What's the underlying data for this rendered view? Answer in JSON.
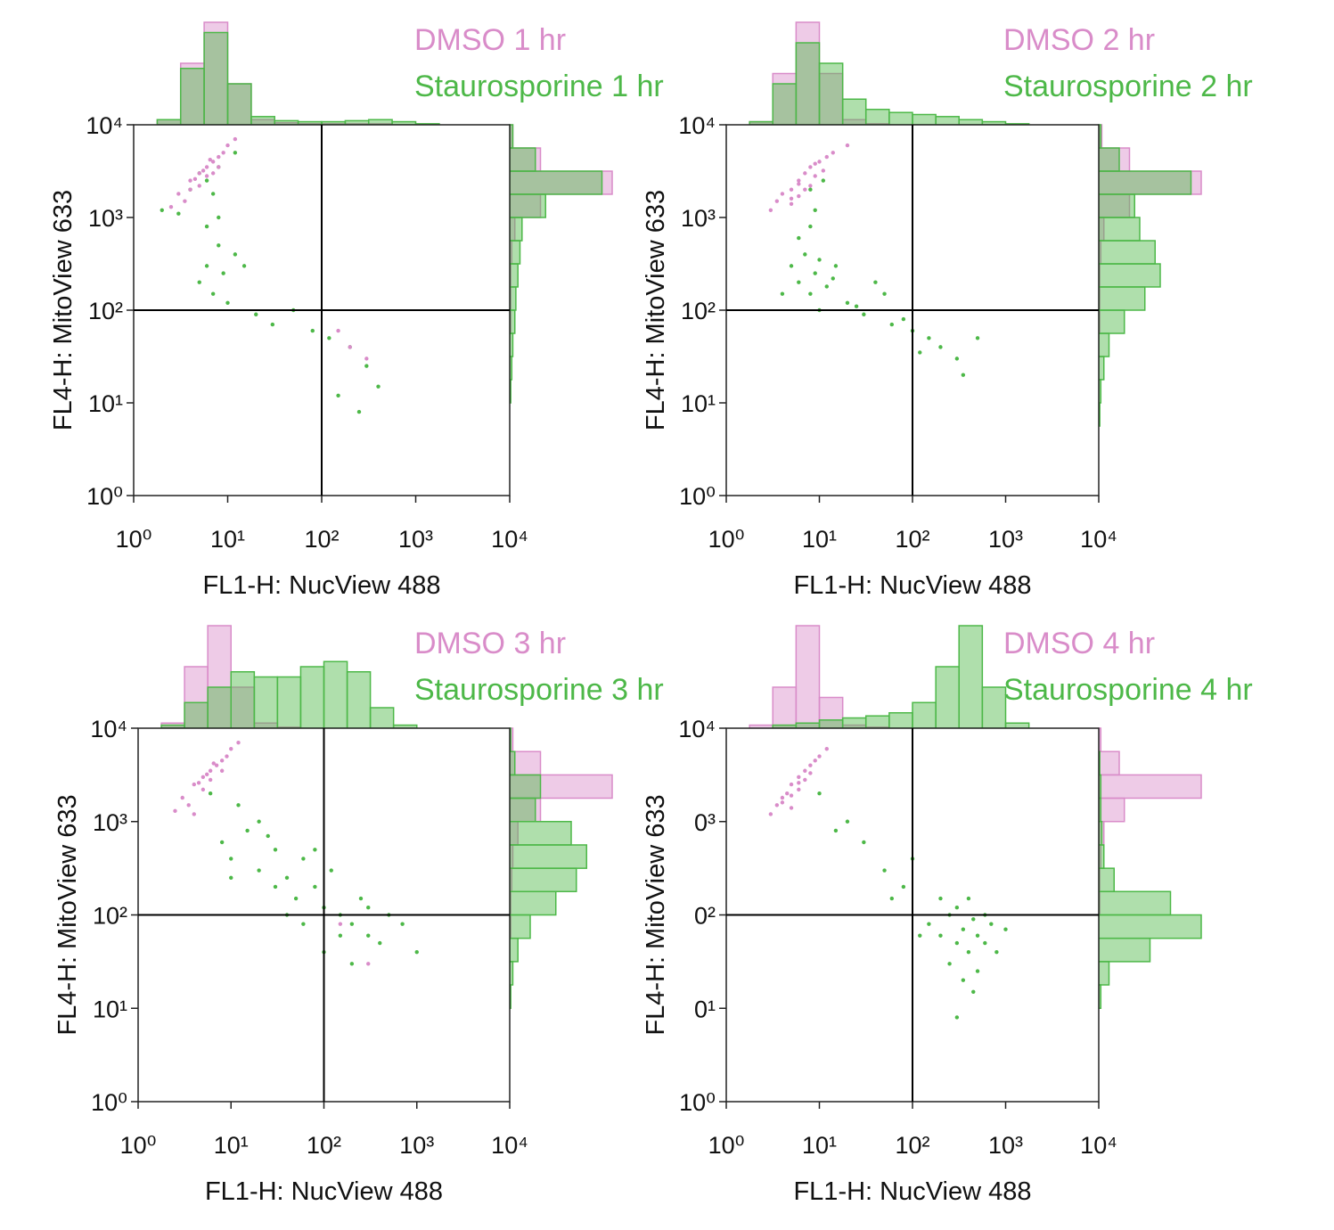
{
  "chart_data": [
    {
      "type": "scatter",
      "xlabel": "FL1-H: NucView 488",
      "ylabel": "FL4-H: MitoView 633",
      "xscale": "log",
      "yscale": "log",
      "xlim": [
        1,
        10000
      ],
      "ylim": [
        1,
        10000
      ],
      "xticks": [
        {
          "value": 1,
          "label": "10⁰"
        },
        {
          "value": 10,
          "label": "10¹"
        },
        {
          "value": 100,
          "label": "10²"
        },
        {
          "value": 1000,
          "label": "10³"
        },
        {
          "value": 10000,
          "label": "10⁴"
        }
      ],
      "yticks": [
        {
          "value": 1,
          "label": "10⁰"
        },
        {
          "value": 10,
          "label": "10¹"
        },
        {
          "value": 100,
          "label": "10²"
        },
        {
          "value": 1000,
          "label": "10³"
        },
        {
          "value": 10000,
          "label": "10⁴"
        }
      ],
      "x_gate": 100,
      "y_gate": 100,
      "hist_bins": [
        1,
        1.78,
        3.16,
        5.62,
        10,
        17.8,
        31.6,
        56.2,
        100,
        178,
        316,
        562,
        1000,
        1780,
        3160,
        5620,
        10000
      ],
      "series": [
        {
          "name": "DMSO 1 hr",
          "color": "#d98cc9",
          "x": [
            2.5,
            3,
            3.5,
            4,
            4,
            4.5,
            5,
            5,
            5.5,
            6,
            6,
            6.5,
            7,
            7,
            8,
            8,
            9,
            10,
            12,
            150,
            200,
            300
          ],
          "y": [
            1300,
            1800,
            1500,
            2500,
            2000,
            2600,
            3000,
            2200,
            3200,
            3500,
            2800,
            4200,
            4000,
            3000,
            4500,
            3500,
            5000,
            6000,
            7000,
            60,
            40,
            30
          ],
          "x_hist": [
            0,
            5,
            60,
            100,
            40,
            5,
            2,
            1,
            1,
            1,
            1,
            0,
            0,
            0,
            0,
            0
          ],
          "y_hist": [
            0,
            0,
            0,
            0,
            0,
            0,
            0,
            1,
            1,
            1,
            2,
            5,
            30,
            100,
            30,
            3
          ]
        },
        {
          "name": "Staurosporine 1 hr",
          "color": "#4db848",
          "x": [
            2,
            3,
            5,
            6,
            7,
            8,
            9,
            10,
            12,
            6,
            8,
            20,
            30,
            50,
            120,
            200,
            300,
            400,
            250,
            150,
            6,
            8,
            5,
            12,
            7,
            4,
            15,
            80
          ],
          "y": [
            1200,
            1100,
            200,
            300,
            150,
            500,
            250,
            120,
            400,
            800,
            1000,
            90,
            70,
            100,
            50,
            40,
            25,
            15,
            8,
            12,
            2500,
            3500,
            3000,
            5000,
            1800,
            2000,
            300,
            60
          ],
          "x_hist": [
            0,
            5,
            55,
            90,
            40,
            8,
            4,
            3,
            3,
            4,
            5,
            3,
            1,
            0,
            0,
            0
          ],
          "y_hist": [
            0,
            0,
            0,
            0,
            1,
            2,
            3,
            5,
            6,
            8,
            10,
            12,
            35,
            90,
            25,
            3
          ]
        }
      ]
    },
    {
      "type": "scatter",
      "xlabel": "FL1-H: NucView 488",
      "ylabel": "FL4-H: MitoView 633",
      "xscale": "log",
      "yscale": "log",
      "xlim": [
        1,
        10000
      ],
      "ylim": [
        1,
        10000
      ],
      "xticks": [
        {
          "value": 1,
          "label": "10⁰"
        },
        {
          "value": 10,
          "label": "10¹"
        },
        {
          "value": 100,
          "label": "10²"
        },
        {
          "value": 1000,
          "label": "10³"
        },
        {
          "value": 10000,
          "label": "10⁴"
        }
      ],
      "yticks": [
        {
          "value": 1,
          "label": "10⁰"
        },
        {
          "value": 10,
          "label": "10¹"
        },
        {
          "value": 100,
          "label": "10²"
        },
        {
          "value": 1000,
          "label": "10³"
        },
        {
          "value": 10000,
          "label": "10⁴"
        }
      ],
      "x_gate": 100,
      "y_gate": 100,
      "hist_bins": [
        1,
        1.78,
        3.16,
        5.62,
        10,
        17.8,
        31.6,
        56.2,
        100,
        178,
        316,
        562,
        1000,
        1780,
        3160,
        5620,
        10000
      ],
      "series": [
        {
          "name": "DMSO 2 hr",
          "color": "#d98cc9",
          "x": [
            3,
            3.5,
            4,
            5,
            5,
            6,
            6,
            7,
            8,
            8,
            9,
            10,
            11,
            12,
            14,
            5,
            7,
            9,
            6,
            20
          ],
          "y": [
            1200,
            1500,
            1800,
            2000,
            1400,
            2500,
            1700,
            3000,
            2200,
            3500,
            2800,
            4000,
            3200,
            4500,
            5000,
            1600,
            2000,
            3800,
            2300,
            6000
          ],
          "x_hist": [
            0,
            3,
            50,
            100,
            50,
            5,
            1,
            0,
            0,
            0,
            0,
            0,
            0,
            0,
            0,
            0
          ],
          "y_hist": [
            0,
            0,
            0,
            0,
            0,
            0,
            0,
            1,
            1,
            1,
            2,
            5,
            30,
            100,
            30,
            3
          ]
        },
        {
          "name": "Staurosporine 2 hr",
          "color": "#4db848",
          "x": [
            5,
            6,
            7,
            8,
            9,
            10,
            12,
            14,
            6,
            8,
            10,
            15,
            20,
            30,
            50,
            80,
            100,
            150,
            200,
            300,
            40,
            60,
            9,
            8,
            11,
            4,
            25,
            120,
            500,
            350
          ],
          "y": [
            300,
            200,
            400,
            150,
            250,
            350,
            180,
            220,
            600,
            800,
            100,
            300,
            120,
            90,
            150,
            80,
            60,
            50,
            40,
            30,
            200,
            70,
            1200,
            2000,
            2500,
            150,
            110,
            35,
            50,
            20
          ],
          "x_hist": [
            0,
            3,
            40,
            80,
            60,
            25,
            15,
            12,
            10,
            8,
            5,
            3,
            1,
            0,
            0,
            0
          ],
          "y_hist": [
            0,
            0,
            0,
            1,
            2,
            5,
            10,
            25,
            45,
            60,
            55,
            40,
            35,
            90,
            20,
            2
          ]
        }
      ]
    },
    {
      "type": "scatter",
      "xlabel": "FL1-H: NucView 488",
      "ylabel": "FL4-H: MitoView 633",
      "xscale": "log",
      "yscale": "log",
      "xlim": [
        1,
        10000
      ],
      "ylim": [
        1,
        10000
      ],
      "xticks": [
        {
          "value": 1,
          "label": "10⁰"
        },
        {
          "value": 10,
          "label": "10¹"
        },
        {
          "value": 100,
          "label": "10²"
        },
        {
          "value": 1000,
          "label": "10³"
        },
        {
          "value": 10000,
          "label": "10⁴"
        }
      ],
      "yticks": [
        {
          "value": 1,
          "label": "10⁰"
        },
        {
          "value": 10,
          "label": "10¹"
        },
        {
          "value": 100,
          "label": "10²"
        },
        {
          "value": 1000,
          "label": "10³"
        },
        {
          "value": 10000,
          "label": "10⁴"
        }
      ],
      "x_gate": 100,
      "y_gate": 100,
      "hist_bins": [
        1,
        1.78,
        3.16,
        5.62,
        10,
        17.8,
        31.6,
        56.2,
        100,
        178,
        316,
        562,
        1000,
        1780,
        3160,
        5620,
        10000
      ],
      "series": [
        {
          "name": "DMSO 3 hr",
          "color": "#d98cc9",
          "x": [
            2.5,
            3,
            3.5,
            4,
            4,
            4.5,
            5,
            5,
            5.5,
            6,
            6,
            6.5,
            7,
            8,
            8,
            9,
            10,
            12,
            300,
            150
          ],
          "y": [
            1300,
            1800,
            1500,
            2500,
            1200,
            2600,
            3000,
            2200,
            3200,
            3500,
            2800,
            4200,
            4000,
            4500,
            3500,
            5000,
            6000,
            7000,
            30,
            80
          ],
          "x_hist": [
            0,
            5,
            60,
            100,
            40,
            5,
            1,
            0,
            0,
            0,
            0,
            0,
            0,
            0,
            0,
            0
          ],
          "y_hist": [
            0,
            0,
            0,
            0,
            0,
            0,
            0,
            1,
            1,
            2,
            3,
            8,
            30,
            100,
            30,
            3
          ]
        },
        {
          "name": "Staurosporine 3 hr",
          "color": "#4db848",
          "x": [
            8,
            10,
            15,
            20,
            30,
            40,
            50,
            60,
            80,
            100,
            120,
            150,
            200,
            250,
            300,
            400,
            500,
            20,
            30,
            60,
            100,
            150,
            200,
            300,
            12,
            25,
            80,
            40,
            700,
            1000,
            6,
            10
          ],
          "y": [
            600,
            400,
            800,
            300,
            500,
            250,
            150,
            400,
            200,
            120,
            300,
            100,
            80,
            150,
            60,
            50,
            100,
            1000,
            200,
            80,
            40,
            60,
            30,
            120,
            1500,
            700,
            500,
            100,
            80,
            40,
            2000,
            250
          ],
          "x_hist": [
            0,
            3,
            25,
            40,
            55,
            50,
            50,
            60,
            65,
            55,
            20,
            3,
            0,
            0,
            0,
            0
          ],
          "y_hist": [
            0,
            0,
            0,
            0,
            1,
            3,
            8,
            20,
            45,
            65,
            75,
            60,
            25,
            30,
            5,
            1
          ]
        }
      ]
    },
    {
      "type": "scatter",
      "xlabel": "FL1-H: NucView 488",
      "ylabel": "FL4-H: MitoView 633",
      "xscale": "log",
      "yscale": "log",
      "xlim": [
        1,
        10000
      ],
      "ylim": [
        1,
        10000
      ],
      "xticks": [
        {
          "value": 1,
          "label": "10⁰"
        },
        {
          "value": 10,
          "label": "10¹"
        },
        {
          "value": 100,
          "label": "10²"
        },
        {
          "value": 1000,
          "label": "10³"
        },
        {
          "value": 10000,
          "label": "10⁴"
        }
      ],
      "yticks": [
        {
          "value": 1,
          "label": "10⁰"
        },
        {
          "value": 10,
          "label": "0¹"
        },
        {
          "value": 100,
          "label": "0²"
        },
        {
          "value": 1000,
          "label": "0³"
        },
        {
          "value": 10000,
          "label": "10⁴"
        }
      ],
      "x_gate": 100,
      "y_gate": 100,
      "hist_bins": [
        1,
        1.78,
        3.16,
        5.62,
        10,
        17.8,
        31.6,
        56.2,
        100,
        178,
        316,
        562,
        1000,
        1780,
        3160,
        5620,
        10000
      ],
      "series": [
        {
          "name": "DMSO 4 hr",
          "color": "#d98cc9",
          "x": [
            3,
            3.5,
            4,
            4.5,
            5,
            5,
            6,
            6,
            7,
            7,
            8,
            9,
            10,
            12,
            4,
            5,
            6,
            8
          ],
          "y": [
            1200,
            1500,
            1800,
            2000,
            1400,
            2500,
            2200,
            3000,
            2800,
            3500,
            4000,
            4500,
            5000,
            6000,
            1600,
            1900,
            2600,
            3300
          ],
          "x_hist": [
            0,
            3,
            40,
            100,
            30,
            3,
            1,
            0,
            0,
            0,
            0,
            0,
            0,
            0,
            0,
            0
          ],
          "y_hist": [
            0,
            0,
            0,
            0,
            0,
            0,
            0,
            0,
            1,
            1,
            2,
            5,
            25,
            100,
            20,
            2
          ]
        },
        {
          "name": "Staurosporine 4 hr",
          "color": "#4db848",
          "x": [
            150,
            200,
            250,
            300,
            350,
            400,
            450,
            500,
            600,
            700,
            800,
            250,
            300,
            400,
            500,
            350,
            200,
            600,
            120,
            1000,
            30,
            50,
            80,
            20,
            15,
            10,
            60,
            100,
            450,
            300
          ],
          "y": [
            80,
            60,
            100,
            50,
            70,
            40,
            90,
            60,
            50,
            80,
            40,
            30,
            120,
            150,
            25,
            20,
            150,
            100,
            60,
            70,
            600,
            300,
            200,
            1000,
            800,
            2000,
            150,
            400,
            15,
            8
          ],
          "x_hist": [
            0,
            0,
            3,
            5,
            8,
            10,
            12,
            15,
            25,
            60,
            100,
            40,
            5,
            0,
            0,
            0
          ],
          "y_hist": [
            0,
            0,
            0,
            0,
            2,
            10,
            50,
            100,
            70,
            15,
            5,
            3,
            2,
            2,
            1,
            0
          ]
        }
      ]
    }
  ]
}
